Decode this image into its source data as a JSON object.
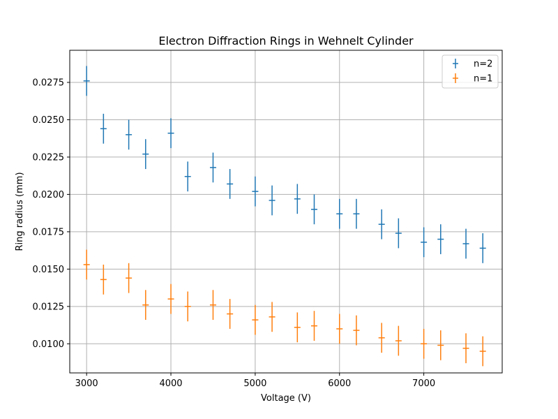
{
  "chart_data": {
    "type": "scatter",
    "title": "Electron Diffraction Rings in Wehnelt Cylinder",
    "xlabel": "Voltage (V)",
    "ylabel": "Ring radius (mm)",
    "xlim": [
      2800,
      7930
    ],
    "ylim": [
      0.00805,
      0.02965
    ],
    "x_ticks": [
      3000,
      4000,
      5000,
      6000,
      7000
    ],
    "x_tick_labels": [
      "3000",
      "4000",
      "5000",
      "6000",
      "7000"
    ],
    "y_ticks": [
      0.01,
      0.0125,
      0.015,
      0.0175,
      0.02,
      0.0225,
      0.025,
      0.0275
    ],
    "y_tick_labels": [
      "0.0100",
      "0.0125",
      "0.0150",
      "0.0175",
      "0.0200",
      "0.0225",
      "0.0250",
      "0.0275"
    ],
    "grid": true,
    "legend_position": "top-right",
    "x": [
      3000,
      3200,
      3500,
      3700,
      4000,
      4200,
      4500,
      4700,
      5000,
      5200,
      5500,
      5700,
      6000,
      6200,
      6500,
      6700,
      7000,
      7200,
      7500,
      7700
    ],
    "series": [
      {
        "name": "n=2",
        "color": "#1f77b4",
        "values": [
          0.0276,
          0.0244,
          0.024,
          0.0227,
          0.0241,
          0.0212,
          0.0218,
          0.0207,
          0.0202,
          0.0196,
          0.0197,
          0.019,
          0.0187,
          0.0187,
          0.018,
          0.0174,
          0.0168,
          0.017,
          0.0167,
          0.0164
        ],
        "error": 0.001
      },
      {
        "name": "n=1",
        "color": "#ff7f0e",
        "values": [
          0.0153,
          0.0143,
          0.0144,
          0.0126,
          0.013,
          0.0125,
          0.0126,
          0.012,
          0.0116,
          0.0118,
          0.0111,
          0.0112,
          0.011,
          0.0109,
          0.0104,
          0.0102,
          0.01,
          0.0099,
          0.0097,
          0.0095
        ],
        "error": 0.001
      }
    ]
  }
}
